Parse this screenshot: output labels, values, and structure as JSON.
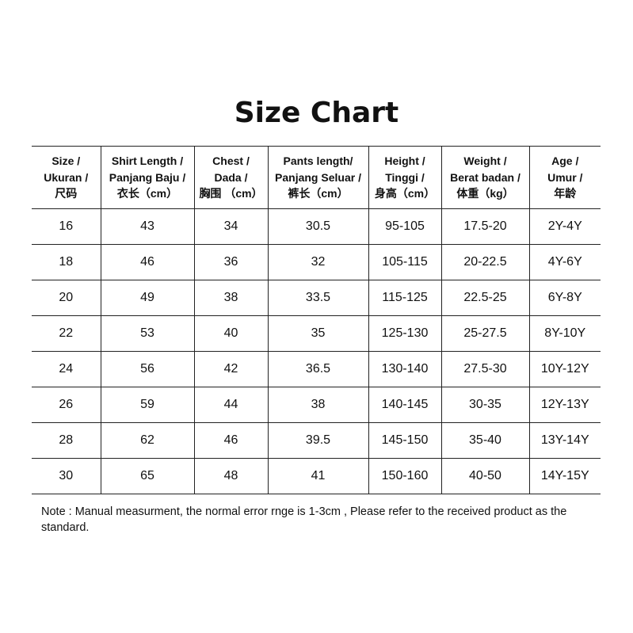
{
  "title": "Size Chart",
  "headers": [
    [
      "Size /",
      "Ukuran /",
      "尺码"
    ],
    [
      "Shirt Length /",
      "Panjang Baju /",
      "衣长（cm）"
    ],
    [
      "Chest /",
      "Dada /",
      "胸围 （cm）"
    ],
    [
      "Pants length/",
      "Panjang Seluar /",
      "裤长（cm）"
    ],
    [
      "Height /",
      "Tinggi /",
      "身高（cm）"
    ],
    [
      "Weight /",
      "Berat badan /",
      "体重（kg）"
    ],
    [
      "Age /",
      "Umur /",
      "年龄"
    ]
  ],
  "rows": [
    [
      "16",
      "43",
      "34",
      "30.5",
      "95-105",
      "17.5-20",
      "2Y-4Y"
    ],
    [
      "18",
      "46",
      "36",
      "32",
      "105-115",
      "20-22.5",
      "4Y-6Y"
    ],
    [
      "20",
      "49",
      "38",
      "33.5",
      "115-125",
      "22.5-25",
      "6Y-8Y"
    ],
    [
      "22",
      "53",
      "40",
      "35",
      "125-130",
      "25-27.5",
      "8Y-10Y"
    ],
    [
      "24",
      "56",
      "42",
      "36.5",
      "130-140",
      "27.5-30",
      "10Y-12Y"
    ],
    [
      "26",
      "59",
      "44",
      "38",
      "140-145",
      "30-35",
      "12Y-13Y"
    ],
    [
      "28",
      "62",
      "46",
      "39.5",
      "145-150",
      "35-40",
      "13Y-14Y"
    ],
    [
      "30",
      "65",
      "48",
      "41",
      "150-160",
      "40-50",
      "14Y-15Y"
    ]
  ],
  "note": "Note : Manual measurment, the normal error rnge is 1-3cm , Please refer to the received product as the standard."
}
